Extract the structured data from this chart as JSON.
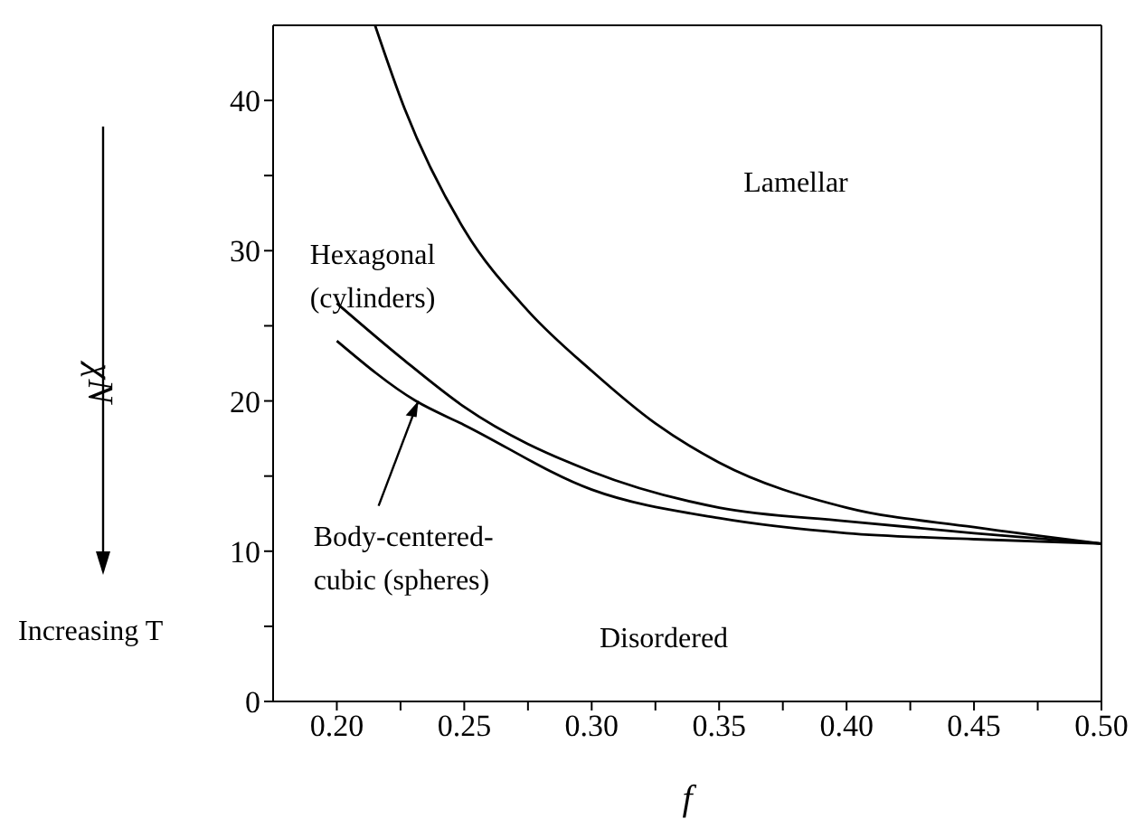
{
  "chart_data": {
    "type": "line",
    "xlabel": "f",
    "ylabel": "χN",
    "xlim": [
      0.175,
      0.5
    ],
    "ylim": [
      0,
      45
    ],
    "xticks": [
      {
        "value": 0.2,
        "label": "0.20"
      },
      {
        "value": 0.225,
        "label": null
      },
      0.25,
      {
        "value": 0.275,
        "label": null
      },
      {
        "value": 0.3,
        "label": "0.30"
      },
      {
        "value": 0.325,
        "label": null
      },
      0.35,
      {
        "value": 0.375,
        "label": null
      },
      {
        "value": 0.4,
        "label": "0.40"
      },
      {
        "value": 0.425,
        "label": null
      },
      0.45,
      {
        "value": 0.475,
        "label": null
      },
      {
        "value": 0.5,
        "label": "0.50"
      }
    ],
    "yticks": [
      0,
      {
        "value": 5,
        "label": null
      },
      10,
      {
        "value": 15,
        "label": null
      },
      20,
      {
        "value": 25,
        "label": null
      },
      30,
      {
        "value": 35,
        "label": null
      },
      40
    ],
    "marker": "none",
    "line_style": "solid",
    "series": [
      {
        "color": "#000000",
        "x": [
          0.215,
          0.2265,
          0.25,
          0.275,
          0.3,
          0.325,
          0.35,
          0.4,
          0.45,
          0.5
        ],
        "values": [
          45,
          39.5,
          31.4,
          26.0,
          22.0,
          18.5,
          15.9,
          12.9,
          11.6,
          10.5
        ]
      },
      {
        "color": "#000000",
        "x": [
          0.2,
          0.2265,
          0.25,
          0.3,
          0.35,
          0.4,
          0.45,
          0.5
        ],
        "values": [
          26.5,
          22.7,
          19.6,
          15.3,
          12.9,
          12.0,
          11.2,
          10.5
        ]
      },
      {
        "color": "#000000",
        "x": [
          0.2,
          0.231,
          0.25,
          0.3,
          0.35,
          0.4,
          0.45,
          0.5
        ],
        "values": [
          24.0,
          20,
          18.4,
          14.1,
          12.2,
          11.2,
          10.8,
          10.5
        ]
      }
    ],
    "annotations": [
      "Lamellar",
      "Hexagonal\n(cylinders)",
      "Disordered",
      "Increasing T",
      {
        "text": "Body-centered-\ncubic (spheres)",
        "x": 0.232,
        "y": 20
      }
    ]
  }
}
